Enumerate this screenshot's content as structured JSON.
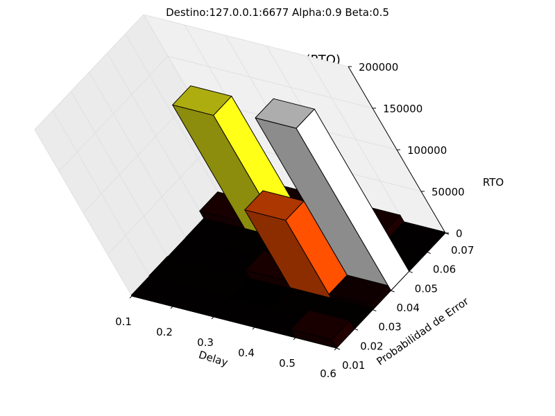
{
  "figure": {
    "suptitle": "Destino:127.0.0.1:6677    Alpha:0.9    Beta:0.5"
  },
  "chart_data": {
    "type": "bar3d",
    "title": "Rtx Timeout(RTO)",
    "xlabel": "Delay",
    "ylabel": "Probabilidad de Error",
    "zlabel": "RTO",
    "x_ticks": [
      "0.1",
      "0.2",
      "0.3",
      "0.4",
      "0.5",
      "0.6"
    ],
    "y_ticks": [
      "0.01",
      "0.02",
      "0.03",
      "0.04",
      "0.05",
      "0.06",
      "0.07"
    ],
    "z_ticks": [
      "0",
      "50000",
      "100000",
      "150000",
      "200000"
    ],
    "xlim": [
      0.1,
      0.6
    ],
    "ylim": [
      0.01,
      0.07
    ],
    "zlim": [
      0,
      200000
    ],
    "grid": true,
    "colormap": "hot",
    "bar_size": [
      0.1,
      0.01
    ],
    "bars": [
      {
        "x": 0.1,
        "y": 0.01,
        "z": 1000
      },
      {
        "x": 0.1,
        "y": 0.02,
        "z": 1500
      },
      {
        "x": 0.1,
        "y": 0.03,
        "z": 1000
      },
      {
        "x": 0.1,
        "y": 0.04,
        "z": 1200
      },
      {
        "x": 0.1,
        "y": 0.05,
        "z": 10000
      },
      {
        "x": 0.1,
        "y": 0.06,
        "z": 1500
      },
      {
        "x": 0.2,
        "y": 0.01,
        "z": 1000
      },
      {
        "x": 0.2,
        "y": 0.02,
        "z": 1500
      },
      {
        "x": 0.2,
        "y": 0.03,
        "z": 1000
      },
      {
        "x": 0.2,
        "y": 0.04,
        "z": 1500
      },
      {
        "x": 0.2,
        "y": 0.05,
        "z": 150000
      },
      {
        "x": 0.2,
        "y": 0.06,
        "z": 8000
      },
      {
        "x": 0.3,
        "y": 0.01,
        "z": 1000
      },
      {
        "x": 0.3,
        "y": 0.02,
        "z": 200
      },
      {
        "x": 0.3,
        "y": 0.03,
        "z": 10000
      },
      {
        "x": 0.3,
        "y": 0.04,
        "z": 1000
      },
      {
        "x": 0.3,
        "y": 0.05,
        "z": 1500
      },
      {
        "x": 0.3,
        "y": 0.06,
        "z": 2000
      },
      {
        "x": 0.4,
        "y": 0.01,
        "z": 1200
      },
      {
        "x": 0.4,
        "y": 0.02,
        "z": 1500
      },
      {
        "x": 0.4,
        "y": 0.03,
        "z": 95000
      },
      {
        "x": 0.4,
        "y": 0.04,
        "z": 1000
      },
      {
        "x": 0.4,
        "y": 0.05,
        "z": 2000
      },
      {
        "x": 0.4,
        "y": 0.06,
        "z": 9000
      },
      {
        "x": 0.5,
        "y": 0.01,
        "z": 10000
      },
      {
        "x": 0.5,
        "y": 0.02,
        "z": 1500
      },
      {
        "x": 0.5,
        "y": 0.03,
        "z": 6000
      },
      {
        "x": 0.5,
        "y": 0.04,
        "z": 195000
      },
      {
        "x": 0.5,
        "y": 0.05,
        "z": 1500
      },
      {
        "x": 0.5,
        "y": 0.06,
        "z": 1000
      }
    ]
  }
}
